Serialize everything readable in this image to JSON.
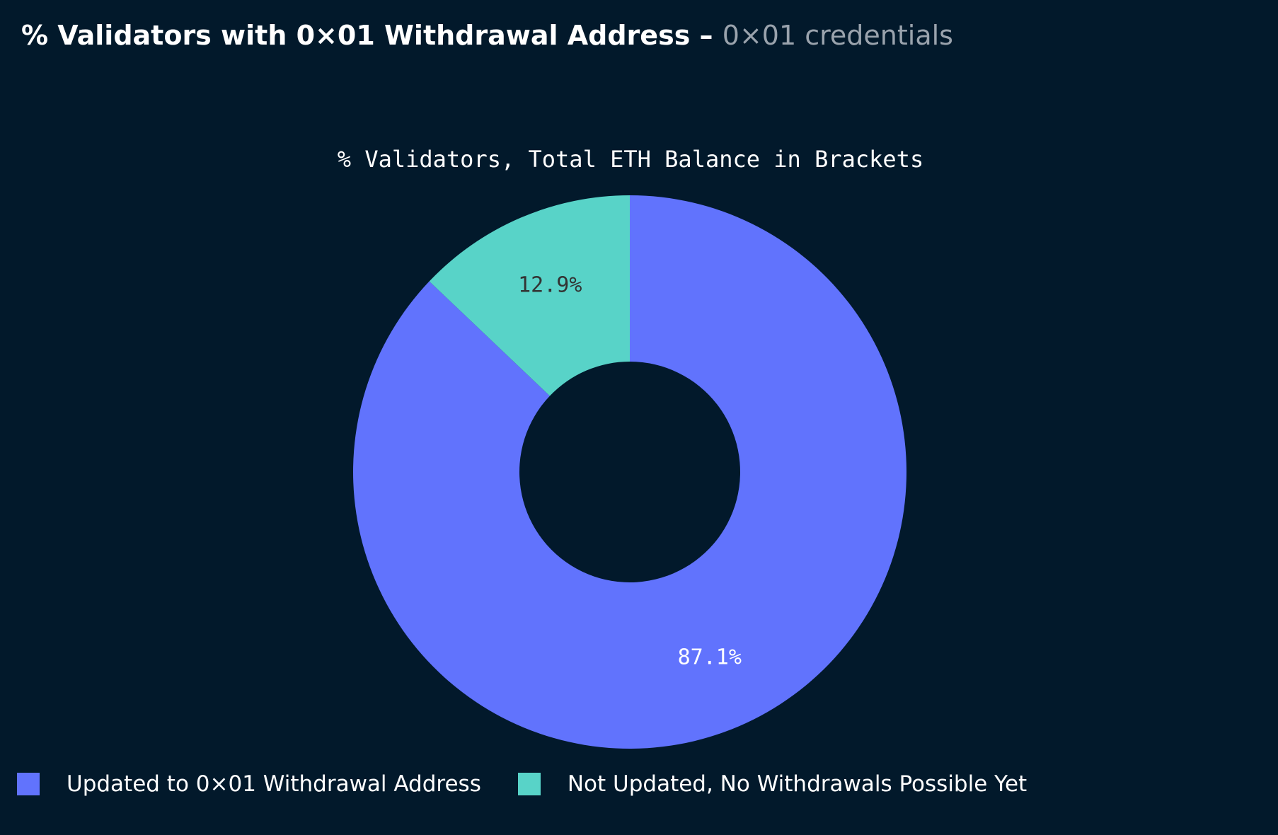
{
  "header": {
    "title": "% Validators with 0×01 Withdrawal Address",
    "separator": "–",
    "subtitle": "0×01 credentials"
  },
  "chart_data": {
    "type": "pie",
    "variant": "donut",
    "title": "% Validators, Total ETH Balance in Brackets",
    "slices": [
      {
        "name": "Updated to 0×01 Withdrawal Address",
        "value": 87.1,
        "label": "87.1%",
        "color": "#6173fd",
        "label_color": "#ffffff"
      },
      {
        "name": "Not Updated, No Withdrawals Possible Yet",
        "value": 12.9,
        "label": "12.9%",
        "color": "#58d3c8",
        "label_color": "#333333"
      }
    ],
    "legend_position": "bottom-left",
    "background": "#02192b"
  }
}
